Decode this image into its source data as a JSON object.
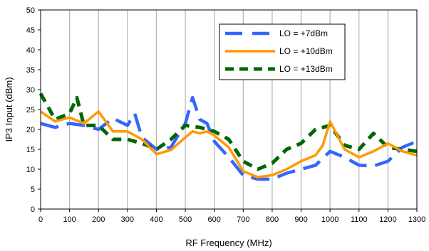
{
  "chart_data": {
    "type": "line",
    "title": "",
    "xlabel": "RF Frequency (MHz)",
    "ylabel": "IP3 Input (dBm)",
    "xlim": [
      0,
      1300
    ],
    "ylim": [
      0,
      50
    ],
    "xticks": [
      0,
      100,
      200,
      300,
      400,
      500,
      600,
      700,
      800,
      900,
      1000,
      1100,
      1200,
      1300
    ],
    "yticks": [
      0,
      5,
      10,
      15,
      20,
      25,
      30,
      35,
      40,
      45,
      50
    ],
    "grid": "vertical",
    "legend": "top-right",
    "series": [
      {
        "name": "LO = +7dBm",
        "color": "#3366ff",
        "dash": "long-dash",
        "x": [
          0,
          50,
          100,
          150,
          200,
          250,
          300,
          325,
          350,
          400,
          450,
          500,
          525,
          550,
          575,
          600,
          650,
          700,
          750,
          800,
          850,
          900,
          950,
          1000,
          1050,
          1100,
          1150,
          1200,
          1250,
          1300
        ],
        "y": [
          21.5,
          20.5,
          21.5,
          21.0,
          20.0,
          22.8,
          21.0,
          24.0,
          18.0,
          15.0,
          15.5,
          21.5,
          28.0,
          22.5,
          21.5,
          17.0,
          13.0,
          8.5,
          7.5,
          7.5,
          9.0,
          10.0,
          11.0,
          14.5,
          13.0,
          11.0,
          10.8,
          12.0,
          15.5,
          17.0
        ]
      },
      {
        "name": "LO = +10dBm",
        "color": "#ff9900",
        "dash": "solid",
        "x": [
          0,
          50,
          100,
          150,
          200,
          250,
          300,
          350,
          400,
          450,
          500,
          525,
          550,
          575,
          600,
          650,
          700,
          750,
          800,
          850,
          900,
          950,
          975,
          1000,
          1050,
          1100,
          1150,
          1200,
          1250,
          1300
        ],
        "y": [
          24.5,
          22.0,
          23.0,
          21.5,
          24.5,
          19.5,
          19.5,
          17.5,
          13.8,
          14.8,
          18.0,
          19.5,
          19.0,
          19.5,
          18.5,
          15.5,
          9.5,
          8.0,
          8.5,
          10.0,
          12.0,
          13.5,
          16.0,
          22.0,
          15.0,
          13.0,
          14.5,
          16.5,
          14.5,
          13.5
        ]
      },
      {
        "name": "LO = +13dBm",
        "color": "#006600",
        "dash": "dash",
        "x": [
          0,
          50,
          100,
          125,
          150,
          200,
          250,
          300,
          350,
          400,
          450,
          500,
          550,
          600,
          650,
          700,
          750,
          800,
          850,
          900,
          950,
          1000,
          1050,
          1100,
          1150,
          1200,
          1250,
          1300
        ],
        "y": [
          29.0,
          22.5,
          24.0,
          28.0,
          21.0,
          21.0,
          17.5,
          17.5,
          16.5,
          15.0,
          17.5,
          21.0,
          20.5,
          19.5,
          17.5,
          12.0,
          10.0,
          11.5,
          15.0,
          16.5,
          20.0,
          21.0,
          16.0,
          15.0,
          19.0,
          15.5,
          15.0,
          14.5
        ]
      }
    ]
  }
}
